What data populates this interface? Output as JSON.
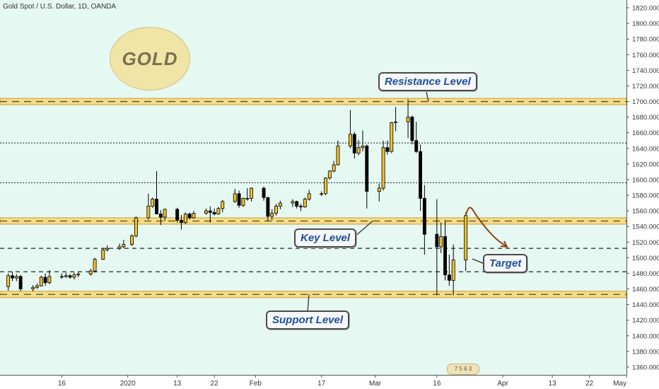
{
  "header": {
    "title": "Gold Spot / U.S. Dollar, 1D, OANDA"
  },
  "badge": {
    "text": "GOLD"
  },
  "watermark": {
    "text": "7 5 6 3"
  },
  "annotations": {
    "resistance": "Resistance Level",
    "key": "Key Level",
    "support": "Support Level",
    "target": "Target"
  },
  "colors": {
    "background": "#e6f8f2",
    "bull_candle": "#f2c12e",
    "bear_candle": "#000000",
    "zone_fill": "#f5dc8a",
    "zone_border": "#c9a230",
    "arrow": "#8b4513",
    "callout_text": "#1f4f99"
  },
  "chart_data": {
    "type": "candlestick",
    "title": "Gold Spot / U.S. Dollar, 1D, OANDA",
    "y_axis": {
      "position": "right",
      "range": [
        1350,
        1830
      ],
      "ticks": [
        1360,
        1380,
        1400,
        1420,
        1440,
        1460,
        1480,
        1500,
        1520,
        1540,
        1560,
        1580,
        1600,
        1620,
        1640,
        1660,
        1680,
        1700,
        1720,
        1740,
        1760,
        1780,
        1800,
        1820
      ],
      "tick_labels": [
        "1360.000",
        "1380.000",
        "1400.000",
        "1420.000",
        "1440.000",
        "1460.000",
        "1480.000",
        "1500.000",
        "1520.000",
        "1540.000",
        "1560.000",
        "1580.000",
        "1600.000",
        "1620.000",
        "1640.000",
        "1660.000",
        "1680.000",
        "1700.000",
        "1720.000",
        "1740.000",
        "1760.000",
        "1780.000",
        "1800.000",
        "1820.000"
      ]
    },
    "x_axis": {
      "tick_labels": [
        "16",
        "2020",
        "13",
        "22",
        "Feb",
        "17",
        "Mar",
        "16",
        "Apr",
        "13",
        "22",
        "May"
      ],
      "tick_dates": [
        "2019-12-16",
        "2020-01-01",
        "2020-01-13",
        "2020-01-22",
        "2020-02-01",
        "2020-02-17",
        "2020-03-01",
        "2020-03-16",
        "2020-04-01",
        "2020-04-13",
        "2020-04-22",
        "2020-05-01"
      ],
      "range": [
        "2019-12-01",
        "2020-05-01"
      ]
    },
    "candles": [
      {
        "d": "2019-12-03",
        "o": 1463,
        "h": 1480,
        "l": 1458,
        "c": 1477
      },
      {
        "d": "2019-12-04",
        "o": 1477,
        "h": 1482,
        "l": 1470,
        "c": 1474
      },
      {
        "d": "2019-12-05",
        "o": 1474,
        "h": 1479,
        "l": 1470,
        "c": 1476
      },
      {
        "d": "2019-12-06",
        "o": 1476,
        "h": 1478,
        "l": 1457,
        "c": 1460
      },
      {
        "d": "2019-12-09",
        "o": 1460,
        "h": 1465,
        "l": 1457,
        "c": 1462
      },
      {
        "d": "2019-12-10",
        "o": 1462,
        "h": 1467,
        "l": 1460,
        "c": 1464
      },
      {
        "d": "2019-12-11",
        "o": 1464,
        "h": 1477,
        "l": 1463,
        "c": 1475
      },
      {
        "d": "2019-12-12",
        "o": 1475,
        "h": 1480,
        "l": 1464,
        "c": 1468
      },
      {
        "d": "2019-12-13",
        "o": 1468,
        "h": 1484,
        "l": 1466,
        "c": 1476
      },
      {
        "d": "2019-12-16",
        "o": 1476,
        "h": 1480,
        "l": 1473,
        "c": 1476
      },
      {
        "d": "2019-12-17",
        "o": 1476,
        "h": 1481,
        "l": 1474,
        "c": 1477
      },
      {
        "d": "2019-12-18",
        "o": 1477,
        "h": 1479,
        "l": 1473,
        "c": 1475
      },
      {
        "d": "2019-12-19",
        "o": 1475,
        "h": 1481,
        "l": 1472,
        "c": 1478
      },
      {
        "d": "2019-12-20",
        "o": 1478,
        "h": 1482,
        "l": 1475,
        "c": 1479
      },
      {
        "d": "2019-12-23",
        "o": 1479,
        "h": 1486,
        "l": 1477,
        "c": 1483
      },
      {
        "d": "2019-12-24",
        "o": 1483,
        "h": 1500,
        "l": 1481,
        "c": 1498
      },
      {
        "d": "2019-12-26",
        "o": 1498,
        "h": 1512,
        "l": 1497,
        "c": 1510
      },
      {
        "d": "2019-12-27",
        "o": 1510,
        "h": 1516,
        "l": 1508,
        "c": 1512
      },
      {
        "d": "2019-12-30",
        "o": 1512,
        "h": 1518,
        "l": 1510,
        "c": 1514
      },
      {
        "d": "2019-12-31",
        "o": 1514,
        "h": 1523,
        "l": 1512,
        "c": 1517
      },
      {
        "d": "2020-01-02",
        "o": 1517,
        "h": 1530,
        "l": 1515,
        "c": 1528
      },
      {
        "d": "2020-01-03",
        "o": 1528,
        "h": 1553,
        "l": 1526,
        "c": 1551
      },
      {
        "d": "2020-01-06",
        "o": 1551,
        "h": 1582,
        "l": 1549,
        "c": 1566
      },
      {
        "d": "2020-01-07",
        "o": 1566,
        "h": 1577,
        "l": 1564,
        "c": 1575
      },
      {
        "d": "2020-01-08",
        "o": 1575,
        "h": 1611,
        "l": 1556,
        "c": 1556
      },
      {
        "d": "2020-01-09",
        "o": 1556,
        "h": 1561,
        "l": 1542,
        "c": 1552
      },
      {
        "d": "2020-01-10",
        "o": 1552,
        "h": 1563,
        "l": 1547,
        "c": 1562
      },
      {
        "d": "2020-01-13",
        "o": 1562,
        "h": 1564,
        "l": 1545,
        "c": 1548
      },
      {
        "d": "2020-01-14",
        "o": 1548,
        "h": 1555,
        "l": 1536,
        "c": 1545
      },
      {
        "d": "2020-01-15",
        "o": 1545,
        "h": 1558,
        "l": 1543,
        "c": 1556
      },
      {
        "d": "2020-01-16",
        "o": 1556,
        "h": 1558,
        "l": 1549,
        "c": 1551
      },
      {
        "d": "2020-01-17",
        "o": 1551,
        "h": 1560,
        "l": 1550,
        "c": 1557
      },
      {
        "d": "2020-01-20",
        "o": 1557,
        "h": 1563,
        "l": 1555,
        "c": 1560
      },
      {
        "d": "2020-01-21",
        "o": 1560,
        "h": 1566,
        "l": 1545,
        "c": 1558
      },
      {
        "d": "2020-01-22",
        "o": 1558,
        "h": 1563,
        "l": 1554,
        "c": 1556
      },
      {
        "d": "2020-01-23",
        "o": 1556,
        "h": 1565,
        "l": 1555,
        "c": 1563
      },
      {
        "d": "2020-01-24",
        "o": 1563,
        "h": 1574,
        "l": 1558,
        "c": 1572
      },
      {
        "d": "2020-01-27",
        "o": 1572,
        "h": 1588,
        "l": 1570,
        "c": 1582
      },
      {
        "d": "2020-01-28",
        "o": 1582,
        "h": 1586,
        "l": 1564,
        "c": 1567
      },
      {
        "d": "2020-01-29",
        "o": 1567,
        "h": 1577,
        "l": 1565,
        "c": 1576
      },
      {
        "d": "2020-01-30",
        "o": 1576,
        "h": 1589,
        "l": 1573,
        "c": 1576
      },
      {
        "d": "2020-01-31",
        "o": 1576,
        "h": 1590,
        "l": 1572,
        "c": 1589
      },
      {
        "d": "2020-02-03",
        "o": 1589,
        "h": 1591,
        "l": 1573,
        "c": 1577
      },
      {
        "d": "2020-02-04",
        "o": 1577,
        "h": 1578,
        "l": 1547,
        "c": 1553
      },
      {
        "d": "2020-02-05",
        "o": 1553,
        "h": 1562,
        "l": 1548,
        "c": 1557
      },
      {
        "d": "2020-02-06",
        "o": 1557,
        "h": 1569,
        "l": 1554,
        "c": 1566
      },
      {
        "d": "2020-02-07",
        "o": 1566,
        "h": 1573,
        "l": 1562,
        "c": 1570
      },
      {
        "d": "2020-02-10",
        "o": 1570,
        "h": 1575,
        "l": 1565,
        "c": 1572
      },
      {
        "d": "2020-02-11",
        "o": 1572,
        "h": 1573,
        "l": 1563,
        "c": 1566
      },
      {
        "d": "2020-02-12",
        "o": 1566,
        "h": 1569,
        "l": 1560,
        "c": 1565
      },
      {
        "d": "2020-02-13",
        "o": 1565,
        "h": 1577,
        "l": 1564,
        "c": 1575
      },
      {
        "d": "2020-02-14",
        "o": 1575,
        "h": 1587,
        "l": 1573,
        "c": 1582
      },
      {
        "d": "2020-02-17",
        "o": 1582,
        "h": 1585,
        "l": 1579,
        "c": 1582
      },
      {
        "d": "2020-02-18",
        "o": 1582,
        "h": 1603,
        "l": 1580,
        "c": 1602
      },
      {
        "d": "2020-02-19",
        "o": 1602,
        "h": 1612,
        "l": 1600,
        "c": 1611
      },
      {
        "d": "2020-02-20",
        "o": 1611,
        "h": 1624,
        "l": 1609,
        "c": 1619
      },
      {
        "d": "2020-02-21",
        "o": 1619,
        "h": 1650,
        "l": 1618,
        "c": 1643
      },
      {
        "d": "2020-02-24",
        "o": 1643,
        "h": 1689,
        "l": 1640,
        "c": 1658
      },
      {
        "d": "2020-02-25",
        "o": 1658,
        "h": 1661,
        "l": 1627,
        "c": 1634
      },
      {
        "d": "2020-02-26",
        "o": 1634,
        "h": 1651,
        "l": 1631,
        "c": 1641
      },
      {
        "d": "2020-02-27",
        "o": 1641,
        "h": 1663,
        "l": 1636,
        "c": 1643
      },
      {
        "d": "2020-02-28",
        "o": 1643,
        "h": 1645,
        "l": 1563,
        "c": 1585
      },
      {
        "d": "2020-03-02",
        "o": 1585,
        "h": 1595,
        "l": 1572,
        "c": 1589
      },
      {
        "d": "2020-03-03",
        "o": 1589,
        "h": 1650,
        "l": 1586,
        "c": 1641
      },
      {
        "d": "2020-03-04",
        "o": 1641,
        "h": 1650,
        "l": 1632,
        "c": 1636
      },
      {
        "d": "2020-03-05",
        "o": 1636,
        "h": 1674,
        "l": 1634,
        "c": 1673
      },
      {
        "d": "2020-03-06",
        "o": 1673,
        "h": 1693,
        "l": 1662,
        "c": 1674
      },
      {
        "d": "2020-03-09",
        "o": 1674,
        "h": 1703,
        "l": 1653,
        "c": 1680
      },
      {
        "d": "2020-03-10",
        "o": 1680,
        "h": 1682,
        "l": 1645,
        "c": 1650
      },
      {
        "d": "2020-03-11",
        "o": 1650,
        "h": 1674,
        "l": 1634,
        "c": 1636
      },
      {
        "d": "2020-03-12",
        "o": 1636,
        "h": 1645,
        "l": 1560,
        "c": 1576
      },
      {
        "d": "2020-03-13",
        "o": 1576,
        "h": 1593,
        "l": 1504,
        "c": 1530
      },
      {
        "d": "2020-03-16",
        "o": 1530,
        "h": 1575,
        "l": 1452,
        "c": 1514
      },
      {
        "d": "2020-03-17",
        "o": 1514,
        "h": 1545,
        "l": 1506,
        "c": 1527
      },
      {
        "d": "2020-03-18",
        "o": 1527,
        "h": 1548,
        "l": 1471,
        "c": 1478
      },
      {
        "d": "2020-03-19",
        "o": 1478,
        "h": 1504,
        "l": 1464,
        "c": 1471
      },
      {
        "d": "2020-03-20",
        "o": 1471,
        "h": 1517,
        "l": 1452,
        "c": 1497
      },
      {
        "d": "2020-03-23",
        "o": 1497,
        "h": 1558,
        "l": 1483,
        "c": 1554
      }
    ],
    "levels": [
      {
        "name": "Resistance Level",
        "price": 1700,
        "style": "zone"
      },
      {
        "name": "",
        "price": 1647,
        "style": "dotted"
      },
      {
        "name": "",
        "price": 1596,
        "style": "dotted"
      },
      {
        "name": "Key Level",
        "price": 1547,
        "style": "zone"
      },
      {
        "name": "",
        "price": 1512,
        "style": "dashed"
      },
      {
        "name": "",
        "price": 1482,
        "style": "dashed"
      },
      {
        "name": "Support Level",
        "price": 1453,
        "style": "zone"
      }
    ],
    "projection": {
      "label": "Target",
      "path": [
        {
          "d": "2020-03-23",
          "p": 1555
        },
        {
          "d": "2020-03-24",
          "p": 1568
        },
        {
          "d": "2020-03-26",
          "p": 1550
        },
        {
          "d": "2020-03-30",
          "p": 1525
        },
        {
          "d": "2020-04-02",
          "p": 1514
        }
      ]
    },
    "grid": false,
    "legend": "none"
  }
}
